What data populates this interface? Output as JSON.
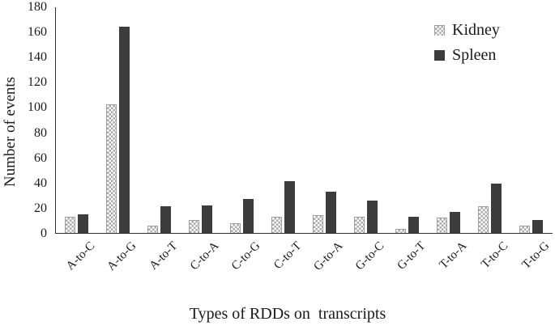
{
  "figure": {
    "background": "#ffffff",
    "axis_color": "#2f2f2f"
  },
  "chart_data": {
    "type": "bar",
    "title": "",
    "xlabel": "Types of RDDs on  transcripts",
    "ylabel": "Number of events",
    "categories": [
      "A-to-C",
      "A-to-G",
      "A-to-T",
      "C-to-A",
      "C-to-G",
      "C-to-T",
      "G-to-A",
      "G-to-C",
      "G-to-T",
      "T-to-A",
      "T-to-C",
      "T-to-G"
    ],
    "series": [
      {
        "name": "Kidney",
        "style": "checker",
        "color": "#ababab",
        "values": [
          13,
          102,
          6,
          10,
          8,
          13,
          14,
          13,
          3,
          12,
          21,
          6
        ]
      },
      {
        "name": "Spleen",
        "style": "solid",
        "color": "#3c3c3c",
        "values": [
          15,
          164,
          21,
          22,
          27,
          41,
          33,
          26,
          13,
          17,
          39,
          10
        ]
      }
    ],
    "ylim": [
      0,
      180
    ],
    "yticks": [
      0,
      20,
      40,
      60,
      80,
      100,
      120,
      140,
      160,
      180
    ],
    "grid": false,
    "legend_position": "top-right"
  }
}
